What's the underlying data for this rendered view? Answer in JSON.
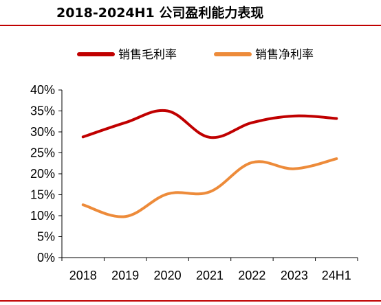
{
  "title": "2018-2024H1 公司盈利能力表现",
  "chart_data": {
    "type": "line",
    "title": "2018-2024H1 公司盈利能力表现",
    "categories": [
      "2018",
      "2019",
      "2020",
      "2021",
      "2022",
      "2023",
      "24H1"
    ],
    "ylim": [
      0,
      0.4
    ],
    "yticks": [
      "0%",
      "5%",
      "10%",
      "15%",
      "20%",
      "25%",
      "30%",
      "35%",
      "40%"
    ],
    "grid": false,
    "legend_position": "top",
    "series": [
      {
        "name": "销售毛利率",
        "color": "#c00000",
        "values": [
          0.288,
          0.322,
          0.35,
          0.287,
          0.322,
          0.338,
          0.332
        ]
      },
      {
        "name": "销售净利率",
        "color": "#ed8b3a",
        "values": [
          0.126,
          0.098,
          0.152,
          0.157,
          0.227,
          0.212,
          0.236
        ]
      }
    ]
  }
}
